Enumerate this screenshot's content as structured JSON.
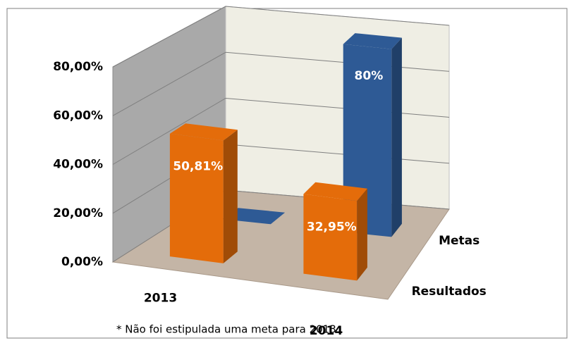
{
  "chart_data": {
    "type": "bar3d",
    "categories": [
      "2013",
      "2014"
    ],
    "series": [
      {
        "name": "Resultados",
        "color": "#e46c0a",
        "values": [
          50.81,
          32.95
        ],
        "value_labels": [
          "50,81%",
          "32,95%"
        ]
      },
      {
        "name": "Metas",
        "color": "#2e5a95",
        "values": [
          0,
          80
        ],
        "value_labels": [
          null,
          "80%"
        ]
      }
    ],
    "ylim": [
      0,
      80
    ],
    "yticks": [
      {
        "value": 0,
        "label": "0,00%"
      },
      {
        "value": 20,
        "label": "20,00%"
      },
      {
        "value": 40,
        "label": "40,00%"
      },
      {
        "value": 60,
        "label": "60,00%"
      },
      {
        "value": 80,
        "label": "80,00%"
      }
    ],
    "grid": true,
    "annotation": "* Não foi estipulada uma meta para 2013."
  }
}
